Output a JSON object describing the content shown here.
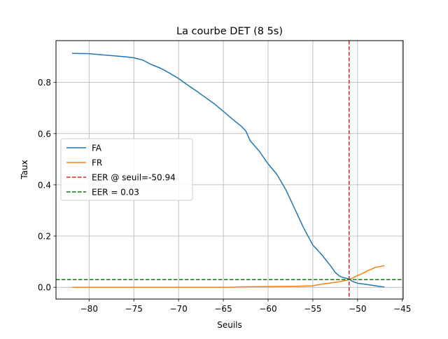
{
  "chart_data": {
    "type": "line",
    "title": "La courbe DET (8 5s)",
    "xlabel": "Seuils",
    "ylabel": "Taux",
    "xlim": [
      -83.7,
      -44.9
    ],
    "ylim": [
      -0.046,
      0.963
    ],
    "xticks": [
      -80,
      -75,
      -70,
      -65,
      -60,
      -55,
      -50,
      -45
    ],
    "xtick_labels": [
      "−80",
      "−75",
      "−70",
      "−65",
      "−60",
      "−55",
      "−50",
      "−45"
    ],
    "yticks": [
      0.0,
      0.2,
      0.4,
      0.6,
      0.8
    ],
    "ytick_labels": [
      "0.0",
      "0.2",
      "0.4",
      "0.6",
      "0.8"
    ],
    "grid": true,
    "legend_position": "center-left",
    "series": [
      {
        "name": "FA",
        "color": "#1f77b4",
        "x": [
          -81.9,
          -80,
          -78,
          -76,
          -75,
          -74,
          -73,
          -72,
          -71,
          -70,
          -69,
          -68,
          -67,
          -66,
          -65,
          -64,
          -63,
          -62.5,
          -62,
          -61,
          -60,
          -59,
          -58,
          -57,
          -56,
          -55,
          -54,
          -53,
          -52.5,
          -52,
          -51.5,
          -51,
          -50.5,
          -50,
          -49,
          -48,
          -47
        ],
        "y": [
          0.913,
          0.912,
          0.906,
          0.9,
          0.896,
          0.887,
          0.869,
          0.855,
          0.836,
          0.815,
          0.79,
          0.766,
          0.741,
          0.716,
          0.687,
          0.657,
          0.629,
          0.611,
          0.572,
          0.532,
          0.482,
          0.44,
          0.38,
          0.305,
          0.23,
          0.165,
          0.127,
          0.083,
          0.058,
          0.043,
          0.037,
          0.033,
          0.022,
          0.016,
          0.011,
          0.006,
          0.001
        ]
      },
      {
        "name": "FR",
        "color": "#ff7f0e",
        "x": [
          -81.9,
          -75,
          -70,
          -64,
          -63,
          -60,
          -57,
          -55,
          -54,
          -53,
          -52,
          -51,
          -50.5,
          -50,
          -49.5,
          -49,
          -48.5,
          -48,
          -47.5,
          -47
        ],
        "y": [
          0.0,
          0.0,
          0.0,
          0.0,
          0.002,
          0.003,
          0.004,
          0.006,
          0.012,
          0.017,
          0.022,
          0.029,
          0.037,
          0.046,
          0.053,
          0.063,
          0.07,
          0.078,
          0.081,
          0.085
        ]
      },
      {
        "name": "EER @ seuil=-50.94",
        "color": "#d62728",
        "style": "dashed",
        "orientation": "vertical",
        "x": -50.94
      },
      {
        "name": "EER = 0.03",
        "color": "#008000",
        "style": "dashed",
        "orientation": "horizontal",
        "y": 0.03
      }
    ]
  }
}
